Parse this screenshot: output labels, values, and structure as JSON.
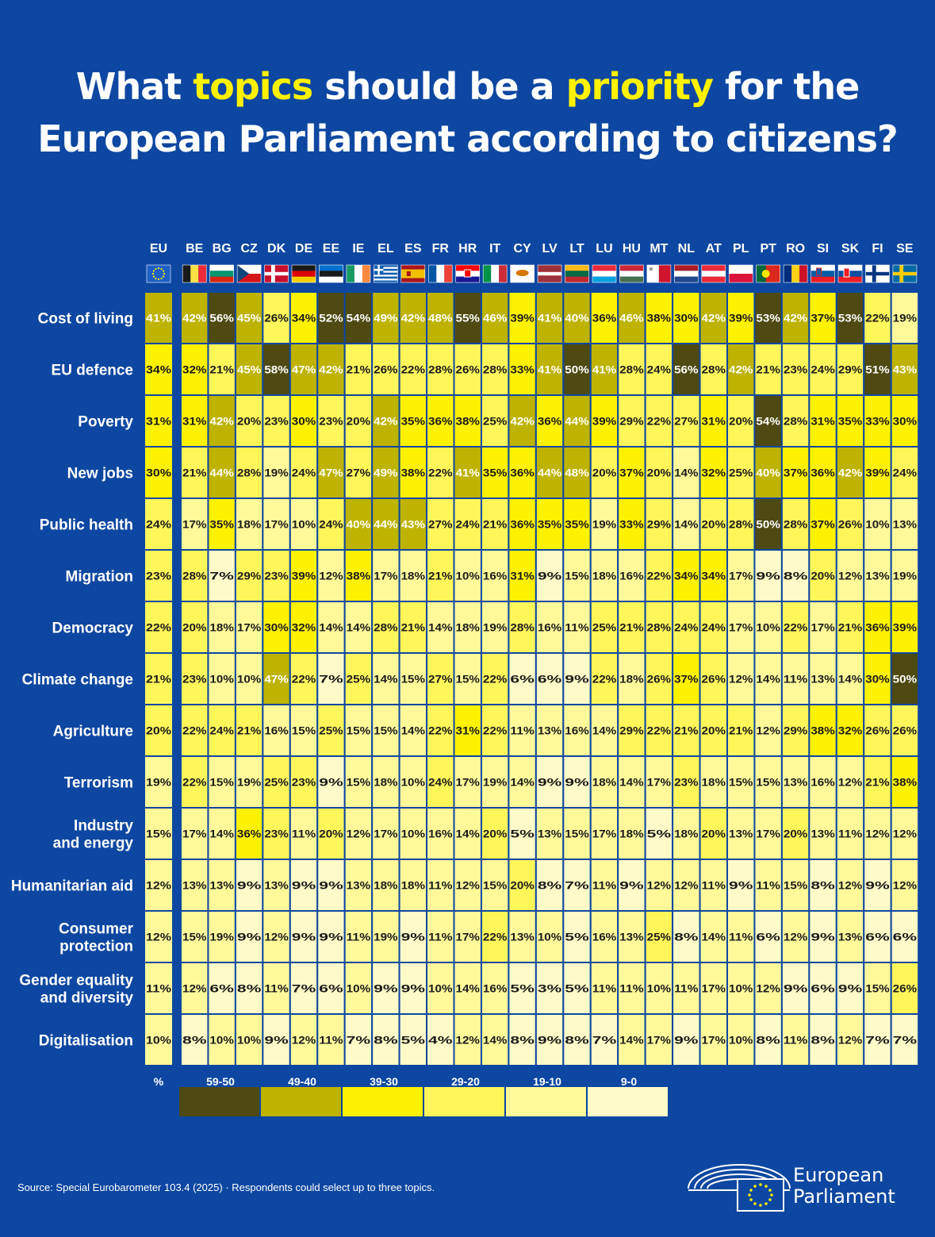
{
  "title": {
    "line1_a": "What ",
    "line1_hl1": "topics",
    "line1_b": " should be a ",
    "line1_hl2": "priority",
    "line1_c": " for the",
    "line2": "European Parliament according to citizens?"
  },
  "chart_data": {
    "type": "heatmap",
    "columns": [
      "EU",
      "BE",
      "BG",
      "CZ",
      "DK",
      "DE",
      "EE",
      "IE",
      "EL",
      "ES",
      "FR",
      "HR",
      "IT",
      "CY",
      "LV",
      "LT",
      "LU",
      "HU",
      "MT",
      "NL",
      "AT",
      "PL",
      "PT",
      "RO",
      "SI",
      "SK",
      "FI",
      "SE"
    ],
    "rows": [
      {
        "label": [
          "Cost of living"
        ],
        "values": [
          41,
          42,
          56,
          45,
          26,
          34,
          52,
          54,
          49,
          42,
          48,
          55,
          46,
          39,
          41,
          40,
          36,
          46,
          38,
          30,
          42,
          39,
          53,
          42,
          37,
          53,
          22,
          19
        ]
      },
      {
        "label": [
          "EU defence"
        ],
        "values": [
          34,
          32,
          21,
          45,
          58,
          47,
          42,
          21,
          26,
          22,
          28,
          26,
          28,
          33,
          41,
          50,
          41,
          28,
          24,
          56,
          28,
          42,
          21,
          23,
          24,
          29,
          51,
          43
        ]
      },
      {
        "label": [
          "Poverty"
        ],
        "values": [
          31,
          31,
          42,
          20,
          23,
          30,
          23,
          20,
          42,
          35,
          36,
          38,
          25,
          42,
          36,
          44,
          39,
          29,
          22,
          27,
          31,
          20,
          54,
          28,
          31,
          35,
          33,
          30
        ]
      },
      {
        "label": [
          "New jobs"
        ],
        "values": [
          30,
          21,
          44,
          28,
          19,
          24,
          47,
          27,
          49,
          38,
          22,
          41,
          35,
          36,
          44,
          48,
          20,
          37,
          20,
          14,
          32,
          25,
          40,
          37,
          36,
          42,
          39,
          24
        ]
      },
      {
        "label": [
          "Public health"
        ],
        "values": [
          24,
          17,
          35,
          18,
          17,
          10,
          24,
          40,
          44,
          43,
          27,
          24,
          21,
          36,
          35,
          35,
          19,
          33,
          29,
          14,
          20,
          28,
          50,
          28,
          37,
          26,
          10,
          13
        ]
      },
      {
        "label": [
          "Migration"
        ],
        "values": [
          23,
          28,
          7,
          29,
          23,
          39,
          12,
          38,
          17,
          18,
          21,
          10,
          16,
          31,
          9,
          15,
          18,
          16,
          22,
          34,
          34,
          17,
          9,
          8,
          20,
          12,
          13,
          19
        ]
      },
      {
        "label": [
          "Democracy"
        ],
        "values": [
          22,
          20,
          18,
          17,
          30,
          32,
          14,
          14,
          28,
          21,
          14,
          18,
          19,
          28,
          16,
          11,
          25,
          21,
          28,
          24,
          24,
          17,
          10,
          22,
          17,
          21,
          36,
          39
        ]
      },
      {
        "label": [
          "Climate change"
        ],
        "values": [
          21,
          23,
          10,
          10,
          47,
          22,
          7,
          25,
          14,
          15,
          27,
          15,
          22,
          6,
          6,
          9,
          22,
          18,
          26,
          37,
          26,
          12,
          14,
          11,
          13,
          14,
          30,
          50
        ]
      },
      {
        "label": [
          "Agriculture"
        ],
        "values": [
          20,
          22,
          24,
          21,
          16,
          15,
          25,
          15,
          15,
          14,
          22,
          31,
          22,
          11,
          13,
          16,
          14,
          29,
          22,
          21,
          20,
          21,
          12,
          29,
          38,
          32,
          26,
          26
        ]
      },
      {
        "label": [
          "Terrorism"
        ],
        "values": [
          19,
          22,
          15,
          19,
          25,
          23,
          9,
          15,
          18,
          10,
          24,
          17,
          19,
          14,
          9,
          9,
          18,
          14,
          17,
          23,
          18,
          15,
          15,
          13,
          16,
          12,
          21,
          38
        ]
      },
      {
        "label": [
          "Industry",
          "and energy"
        ],
        "values": [
          15,
          17,
          14,
          36,
          23,
          11,
          20,
          12,
          17,
          10,
          16,
          14,
          20,
          5,
          13,
          15,
          17,
          18,
          5,
          18,
          20,
          13,
          17,
          20,
          13,
          11,
          12,
          12
        ]
      },
      {
        "label": [
          "Humanitarian aid"
        ],
        "values": [
          12,
          13,
          13,
          9,
          13,
          9,
          9,
          13,
          18,
          18,
          11,
          12,
          15,
          20,
          8,
          7,
          11,
          9,
          12,
          12,
          11,
          9,
          11,
          15,
          8,
          12,
          9,
          12
        ]
      },
      {
        "label": [
          "Consumer",
          "protection"
        ],
        "values": [
          12,
          15,
          19,
          9,
          12,
          9,
          9,
          11,
          19,
          9,
          11,
          17,
          22,
          13,
          10,
          5,
          16,
          13,
          25,
          8,
          14,
          11,
          6,
          12,
          9,
          13,
          6,
          6
        ]
      },
      {
        "label": [
          "Gender equality",
          "and diversity"
        ],
        "values": [
          11,
          12,
          6,
          8,
          11,
          7,
          6,
          10,
          9,
          9,
          10,
          14,
          16,
          5,
          3,
          5,
          11,
          11,
          10,
          11,
          17,
          10,
          12,
          9,
          6,
          9,
          15,
          26
        ]
      },
      {
        "label": [
          "Digitalisation"
        ],
        "values": [
          10,
          8,
          10,
          10,
          9,
          12,
          11,
          7,
          8,
          5,
          4,
          12,
          14,
          8,
          9,
          8,
          7,
          14,
          17,
          9,
          17,
          10,
          8,
          11,
          8,
          12,
          7,
          7
        ]
      }
    ],
    "unit_label": "%",
    "legend": {
      "labels": [
        "59-50",
        "49-40",
        "39-30",
        "29-20",
        "19-10",
        "9-0"
      ],
      "colors": [
        "#4e4a12",
        "#bdb300",
        "#fff200",
        "#fff65a",
        "#fff99a",
        "#fffbc8"
      ]
    }
  },
  "flags": [
    "eu",
    "be",
    "bg",
    "cz",
    "dk",
    "de",
    "ee",
    "ie",
    "el",
    "es",
    "fr",
    "hr",
    "it",
    "cy",
    "lv",
    "lt",
    "lu",
    "hu",
    "mt",
    "nl",
    "at",
    "pl",
    "pt",
    "ro",
    "si",
    "sk",
    "fi",
    "se"
  ],
  "source": "Source: Special Eurobarometer 103.4 (2025) · Respondents could select up to three topics.",
  "logo": {
    "line1": "European",
    "line2": "Parliament"
  }
}
